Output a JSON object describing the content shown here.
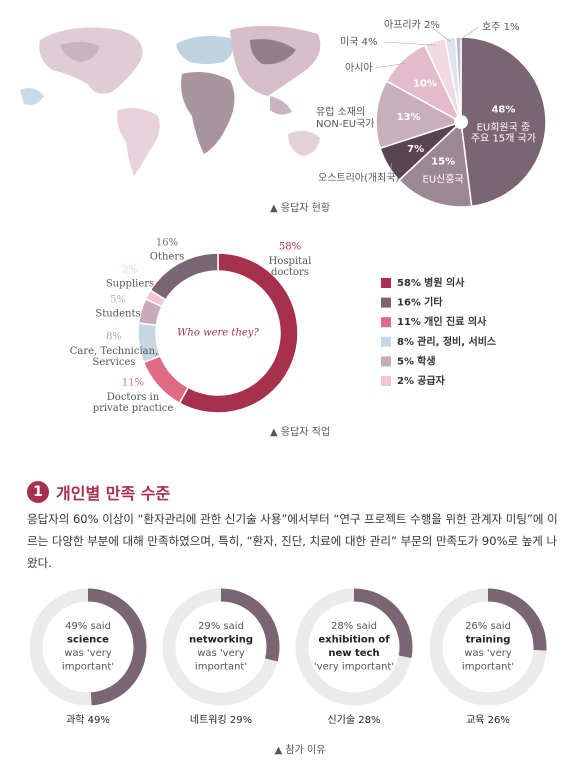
{
  "chart_data": [
    {
      "type": "pie",
      "caption": "▲ 응답자 현황",
      "categories": [
        "EU회원국 중\n주요 15개 국가",
        "EU신흥국",
        "오스트리아(개최국)",
        "유럽 소재의\nNON-EU국가",
        "아시아",
        "미국",
        "아프리카",
        "호주"
      ],
      "values": [
        48,
        15,
        7,
        13,
        10,
        4,
        2,
        1
      ],
      "value_labels": [
        "48%",
        "15%",
        "7%",
        "13%",
        "10%",
        "4%",
        "2%",
        "1%"
      ],
      "colors": [
        "#7c6573",
        "#9c8893",
        "#5b4452",
        "#c9aebb",
        "#e3bccb",
        "#f1d8e2",
        "#dfe3ea",
        "#b9c0cb"
      ]
    },
    {
      "type": "donut",
      "caption": "▲ 응답자 직업",
      "center_text": "Who were they?",
      "categories": [
        "Hospital\ndoctors",
        "Doctors in\nprivate practice",
        "Care, Technician,\nServices",
        "Students",
        "Suppliers",
        "Others"
      ],
      "legend_labels": [
        "병원 의사",
        "개인 진료 의사",
        "관리, 정비, 서비스",
        "학생",
        "공급자",
        "기타"
      ],
      "values": [
        58,
        11,
        8,
        5,
        2,
        16
      ],
      "value_labels": [
        "58%",
        "11%",
        "8%",
        "5%",
        "2%",
        "16%"
      ],
      "colors": [
        "#a8304f",
        "#e06a85",
        "#c6d6e2",
        "#c8aab8",
        "#f2c6d3",
        "#7c6573"
      ]
    },
    {
      "type": "progress",
      "caption": "▲ 참가 이유",
      "categories": [
        "과학",
        "네트워킹",
        "신기술",
        "교육"
      ],
      "values": [
        49,
        29,
        28,
        26
      ],
      "value_labels": [
        "49%",
        "29%",
        "28%",
        "26%"
      ],
      "descriptions": [
        [
          "49% said",
          "science",
          "was 'very",
          "important'"
        ],
        [
          "29% said",
          "networking",
          "was 'very",
          "important'"
        ],
        [
          "28% said",
          "exhibition of",
          "new tech",
          "'very important'"
        ],
        [
          "26% said",
          "training",
          "was 'very",
          "important'"
        ]
      ],
      "bold_lines": [
        [
          1
        ],
        [
          1
        ],
        [
          1,
          2
        ],
        [
          1
        ]
      ],
      "color": "#7c6573",
      "track_color": "#ebebeb"
    }
  ],
  "section": {
    "number": "1",
    "heading": "개인별 만족 수준",
    "body": "응답자의 60% 이상이 “환자관리에 관한 신기술 사용”에서부터 “연구 프로젝트 수행을 위한 관계자 미팅”에 이르는 다양한 부분에 대해 만족하였으며, 특히, “환자, 진단, 치료에 대한 관리” 부문의 만족도가 90%로 높게 나왔다."
  }
}
